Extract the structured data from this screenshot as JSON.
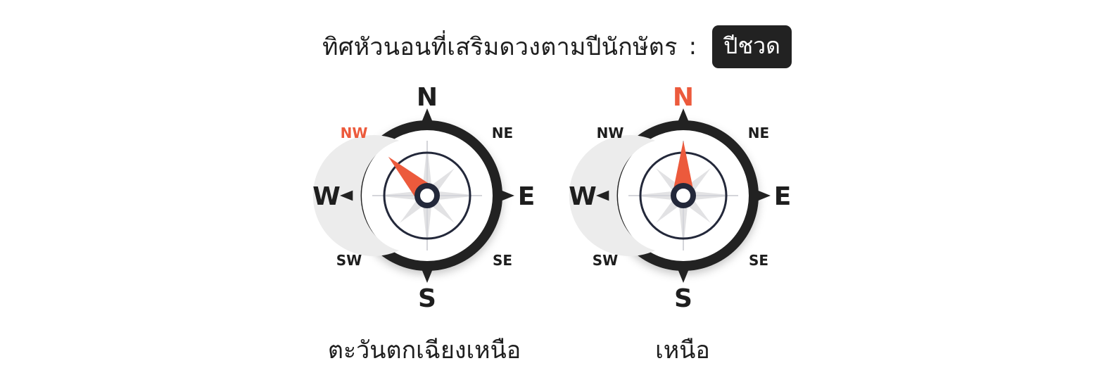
{
  "header": {
    "title": "ทิศหัวนอนที่เสริมดวงตามปีนักษัตร",
    "separator": ":",
    "zodiac_badge": "ปีชวด"
  },
  "compasses": [
    {
      "caption": "ตะวันตกเฉียงเหนือ",
      "highlighted": "NW",
      "needle_deg": -45,
      "labels": {
        "N": "N",
        "NE": "NE",
        "E": "E",
        "SE": "SE",
        "S": "S",
        "SW": "SW",
        "W": "W",
        "NW": "NW"
      }
    },
    {
      "caption": "เหนือ",
      "highlighted": "N",
      "needle_deg": 0,
      "labels": {
        "N": "N",
        "NE": "NE",
        "E": "E",
        "SE": "SE",
        "S": "S",
        "SW": "SW",
        "W": "W",
        "NW": "NW"
      }
    }
  ],
  "colors": {
    "ring": "#222222",
    "accent": "#ec5a3c",
    "hub": "#23283a",
    "label": "#1e1e1e"
  }
}
